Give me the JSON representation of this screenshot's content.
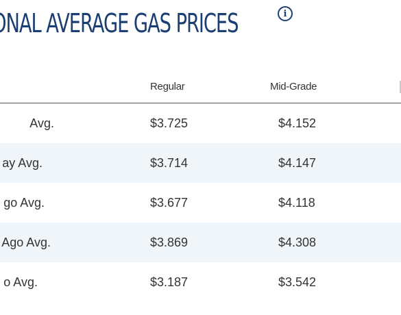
{
  "header": {
    "title": "ONAL AVERAGE GAS PRICES",
    "info_icon": "info-icon"
  },
  "table": {
    "columns": [
      "Regular",
      "Mid-Grade"
    ],
    "rows": [
      {
        "label": "Avg.",
        "regular": "$3.725",
        "mid_grade": "$4.152"
      },
      {
        "label": "ay Avg.",
        "regular": "$3.714",
        "mid_grade": "$4.147"
      },
      {
        "label": "go Avg.",
        "regular": "$3.677",
        "mid_grade": "$4.118"
      },
      {
        "label": "Ago Avg.",
        "regular": "$3.869",
        "mid_grade": "$4.308"
      },
      {
        "label": "o Avg.",
        "regular": "$3.187",
        "mid_grade": "$3.542"
      }
    ]
  },
  "colors": {
    "title": "#1b3f72",
    "row_shade": "#f0f5f9",
    "text": "#333333",
    "header_rule": "#555555"
  }
}
